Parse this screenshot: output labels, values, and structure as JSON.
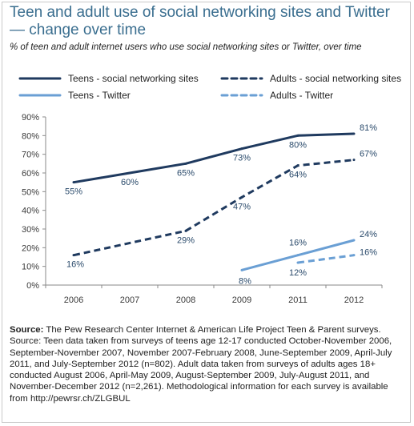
{
  "title": "Teen and adult use of social networking sites and Twitter — change over time",
  "subtitle": "% of teen and adult internet users who use social networking sites or Twitter, over time",
  "source_label": "Source:",
  "source_text": "The Pew Research Center Internet & American Life Project Teen & Parent surveys.  Source: Teen data taken from surveys of teens age 12-17 conducted October-November 2006, September-November 2007, November 2007-February 2008, June-September 2009, April-July 2011, and July-September 2012 (n=802). Adult data taken from surveys of adults ages 18+ conducted August 2006, April-May 2009, August-September 2009, July-August 2011, and November-December 2012 (n=2,261). Methodological information for each survey is available from http://pewrsr.ch/ZLGBUL",
  "colors": {
    "dark": "#1f3a5f",
    "light": "#6a9fd4"
  },
  "chart_data": {
    "type": "line",
    "categories": [
      "2006",
      "2007",
      "2008",
      "2009",
      "2011",
      "2012"
    ],
    "ylim": [
      0,
      90
    ],
    "yticks": [
      0,
      10,
      20,
      30,
      40,
      50,
      60,
      70,
      80,
      90
    ],
    "ytick_labels": [
      "0%",
      "10%",
      "20%",
      "30%",
      "40%",
      "50%",
      "60%",
      "70%",
      "80%",
      "90%"
    ],
    "grid": false,
    "legend_position": "top",
    "series": [
      {
        "name": "Teens - social networking sites",
        "style": "solid",
        "color": "#1f3a5f",
        "values": [
          55,
          60,
          65,
          73,
          80,
          81
        ],
        "labels": [
          "55%",
          "60%",
          "65%",
          "73%",
          "80%",
          "81%"
        ]
      },
      {
        "name": "Adults - social networking sites",
        "style": "dashed",
        "color": "#1f3a5f",
        "values": [
          16,
          null,
          29,
          47,
          64,
          67
        ],
        "labels": [
          "16%",
          "",
          "29%",
          "47%",
          "64%",
          "67%"
        ]
      },
      {
        "name": "Teens - Twitter",
        "style": "solid",
        "color": "#6a9fd4",
        "values": [
          null,
          null,
          null,
          8,
          16,
          24
        ],
        "labels": [
          "",
          "",
          "",
          "8%",
          "16%",
          "24%"
        ]
      },
      {
        "name": "Adults - Twitter",
        "style": "dashed",
        "color": "#6a9fd4",
        "values": [
          null,
          null,
          null,
          null,
          12,
          16
        ],
        "labels": [
          "",
          "",
          "",
          "",
          "12%",
          "16%"
        ]
      }
    ]
  }
}
